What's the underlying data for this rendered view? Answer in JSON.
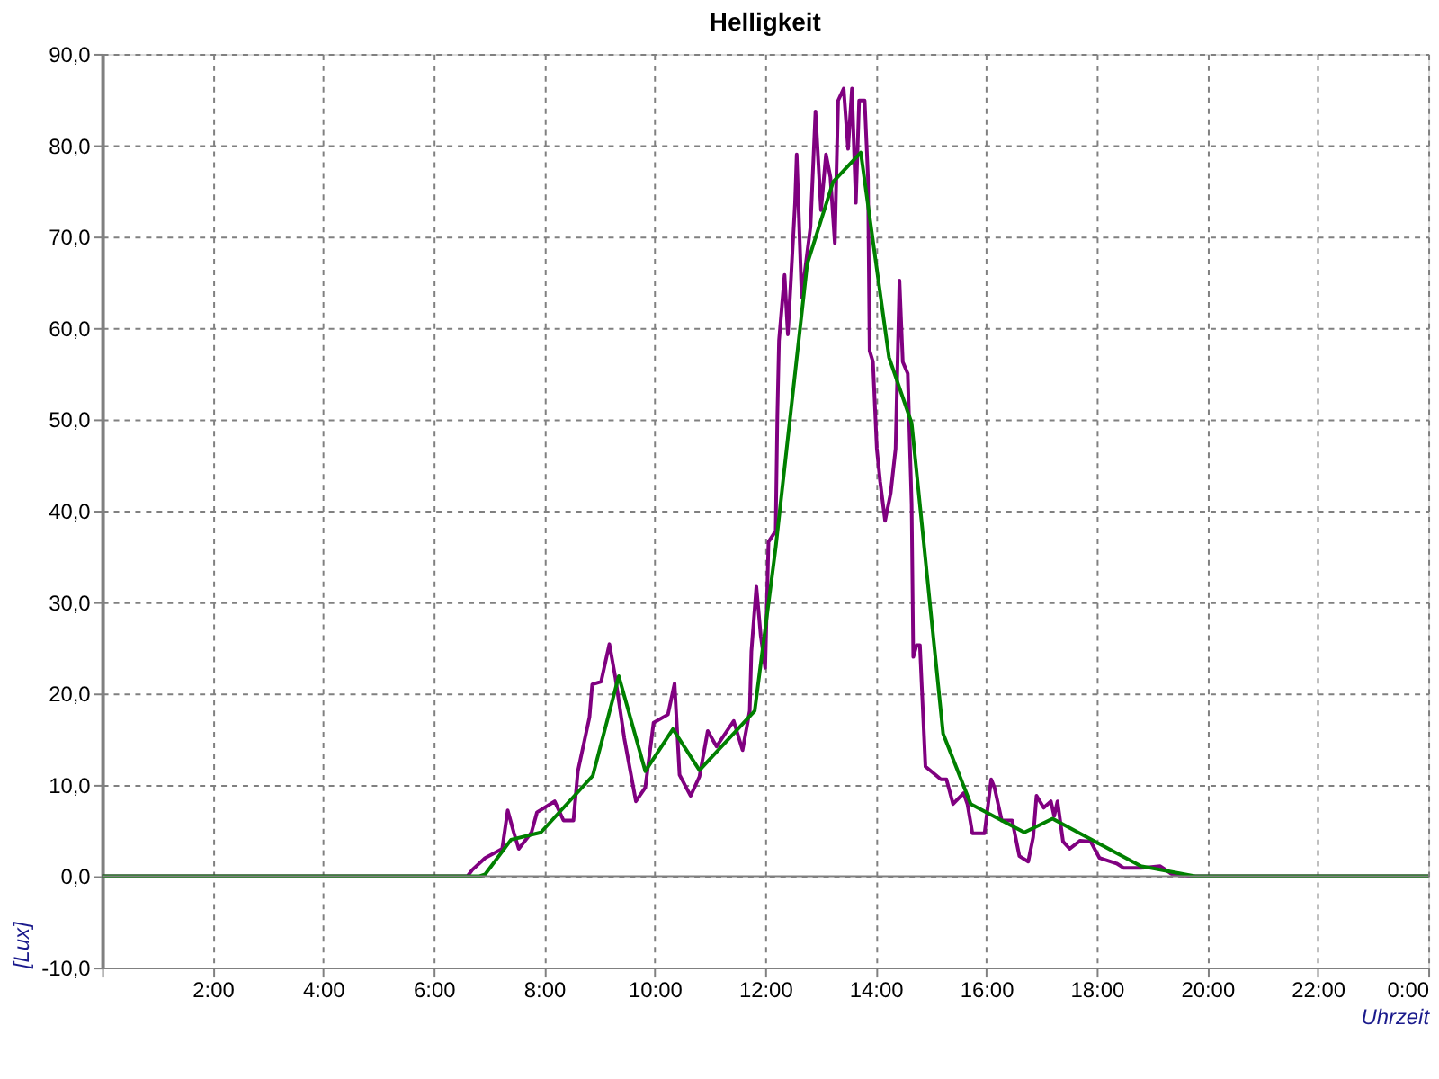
{
  "chart_data": {
    "type": "line",
    "title": "Helligkeit",
    "xlabel": "Uhrzeit",
    "ylabel": "[Lux]",
    "xlim": [
      0,
      24
    ],
    "ylim": [
      -10,
      90
    ],
    "xticks": [
      {
        "value": 0,
        "label": null
      },
      {
        "value": 2,
        "label": "2:00"
      },
      {
        "value": 4,
        "label": "4:00"
      },
      {
        "value": 6,
        "label": "6:00"
      },
      {
        "value": 8,
        "label": "8:00"
      },
      {
        "value": 10,
        "label": "10:00"
      },
      {
        "value": 12,
        "label": "12:00"
      },
      {
        "value": 14,
        "label": "14:00"
      },
      {
        "value": 16,
        "label": "16:00"
      },
      {
        "value": 18,
        "label": "18:00"
      },
      {
        "value": 20,
        "label": "20:00"
      },
      {
        "value": 22,
        "label": "22:00"
      },
      {
        "value": 24,
        "label": "0:00"
      }
    ],
    "yticks": [
      {
        "value": -10,
        "label": "-10,0"
      },
      {
        "value": 0,
        "label": "0,0"
      },
      {
        "value": 10,
        "label": "10,0"
      },
      {
        "value": 20,
        "label": "20,0"
      },
      {
        "value": 30,
        "label": "30,0"
      },
      {
        "value": 40,
        "label": "40,0"
      },
      {
        "value": 50,
        "label": "50,0"
      },
      {
        "value": 60,
        "label": "60,0"
      },
      {
        "value": 70,
        "label": "70,0"
      },
      {
        "value": 80,
        "label": "80,0"
      },
      {
        "value": 90,
        "label": "90,0"
      }
    ],
    "grid": true,
    "line_style": "solid",
    "marker": "none",
    "ref_lines": [
      {
        "axis": "y",
        "value": 0,
        "color": "#808080"
      }
    ],
    "series": [
      {
        "color": "#800080",
        "x": [
          0,
          6.61,
          6.7,
          6.93,
          7.24,
          7.34,
          7.45,
          7.54,
          7.77,
          7.87,
          8.19,
          8.35,
          8.53,
          8.61,
          8.82,
          8.87,
          9.03,
          9.18,
          9.29,
          9.45,
          9.66,
          9.83,
          9.98,
          10.24,
          10.36,
          10.45,
          10.65,
          10.81,
          10.96,
          11.12,
          11.43,
          11.59,
          11.72,
          11.75,
          11.84,
          11.92,
          12.0,
          12.06,
          12.19,
          12.22,
          12.25,
          12.35,
          12.41,
          12.47,
          12.54,
          12.57,
          12.66,
          12.82,
          12.91,
          13.01,
          13.1,
          13.18,
          13.26,
          13.32,
          13.42,
          13.5,
          13.57,
          13.64,
          13.7,
          13.8,
          13.86,
          13.89,
          13.95,
          14.02,
          14.08,
          14.17,
          14.27,
          14.36,
          14.43,
          14.49,
          14.58,
          14.65,
          14.68,
          14.74,
          14.8,
          14.9,
          15.18,
          15.28,
          15.4,
          15.59,
          15.66,
          15.75,
          15.97,
          16.09,
          16.15,
          16.28,
          16.47,
          16.6,
          16.76,
          16.85,
          16.91,
          17.04,
          17.17,
          17.23,
          17.29,
          17.39,
          17.51,
          17.7,
          17.89,
          18.05,
          18.36,
          18.49,
          18.8,
          19.15,
          19.37,
          19.75,
          24
        ],
        "values": [
          0,
          0,
          0.7,
          2.0,
          3.0,
          7.2,
          4.8,
          3.0,
          4.8,
          7.0,
          8.2,
          6.1,
          6.1,
          11.5,
          17.4,
          21.0,
          21.3,
          25.4,
          21.7,
          15.1,
          8.2,
          9.7,
          16.8,
          17.7,
          21.1,
          11.1,
          8.8,
          10.9,
          15.9,
          14.2,
          17.0,
          13.8,
          18.1,
          24.6,
          31.7,
          26.3,
          22.8,
          36.6,
          37.8,
          50.4,
          58.6,
          65.8,
          59.3,
          65.8,
          73.7,
          79.0,
          63.4,
          71.1,
          83.7,
          72.9,
          79.0,
          76.5,
          69.3,
          84.9,
          86.2,
          79.6,
          86.2,
          73.7,
          84.9,
          84.9,
          76.5,
          57.5,
          56.3,
          46.8,
          43.2,
          38.9,
          41.9,
          46.8,
          65.2,
          56.3,
          55.0,
          40.7,
          24.0,
          25.3,
          25.3,
          12.0,
          10.6,
          10.6,
          7.9,
          9.1,
          7.9,
          4.7,
          4.7,
          10.6,
          9.7,
          6.1,
          6.1,
          2.2,
          1.6,
          4.3,
          8.8,
          7.5,
          8.2,
          6.6,
          8.2,
          3.8,
          3.0,
          3.9,
          3.8,
          2.0,
          1.4,
          0.9,
          0.9,
          1.1,
          0.2,
          0,
          0
        ]
      },
      {
        "color": "#008000",
        "x": [
          0,
          6.83,
          6.93,
          7.4,
          7.94,
          8.88,
          9.35,
          9.83,
          10.33,
          10.81,
          11.81,
          12.19,
          12.76,
          13.23,
          13.73,
          14.24,
          14.65,
          15.22,
          15.72,
          16.69,
          17.2,
          18.8,
          19.78,
          24
        ],
        "values": [
          0,
          0,
          0.2,
          4.0,
          4.8,
          11.0,
          21.9,
          11.5,
          16.1,
          11.6,
          18.1,
          36.0,
          67.0,
          76.0,
          79.2,
          56.8,
          49.6,
          15.6,
          7.9,
          4.8,
          6.3,
          1.1,
          0,
          0
        ]
      }
    ]
  }
}
